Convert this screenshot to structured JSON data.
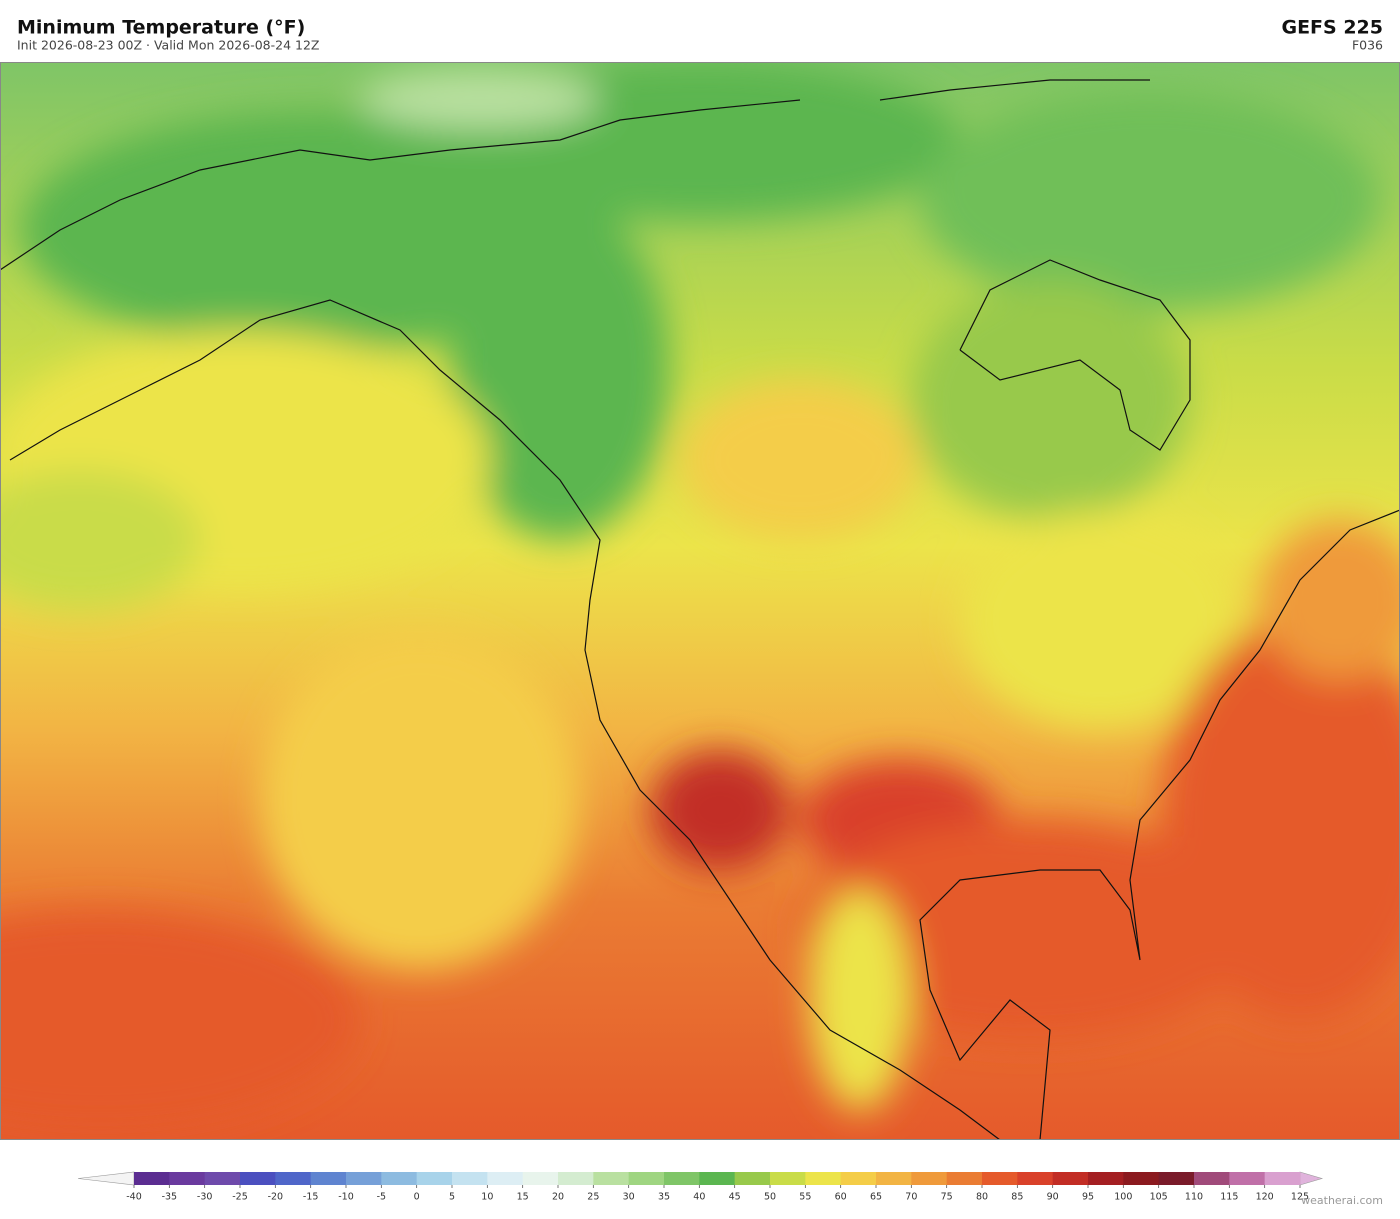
{
  "header": {
    "title": "Minimum Temperature  (°F)",
    "subtitle": "Init 2026-08-23 00Z   ·   Valid Mon 2026-08-24 12Z",
    "model": "GEFS  225",
    "forecast_hour": "F036"
  },
  "colorbar": {
    "ticks": [
      -40,
      -35,
      -30,
      -25,
      -20,
      -15,
      -10,
      -5,
      0,
      5,
      10,
      15,
      20,
      25,
      30,
      35,
      40,
      45,
      50,
      55,
      60,
      65,
      70,
      75,
      80,
      85,
      90,
      95,
      100,
      105,
      110,
      115,
      120,
      125
    ],
    "colors": [
      "#5b2d91",
      "#6a3a9e",
      "#6e4aab",
      "#4b4fbf",
      "#4f66c9",
      "#5f84d0",
      "#76a0d8",
      "#8dbbe0",
      "#a8d3ea",
      "#c4e2f0",
      "#ddeef4",
      "#e8f4ec",
      "#d4ecd0",
      "#b9e0a0",
      "#9fd581",
      "#7fc567",
      "#5bb650",
      "#98c94b",
      "#c9dc48",
      "#ece44a",
      "#f4cd48",
      "#f2b444",
      "#ef9a3b",
      "#ea7c33",
      "#e55a2b",
      "#d9412a",
      "#c22d25",
      "#a41f22",
      "#8b1a1f",
      "#7a1b2a",
      "#a04a7a",
      "#c070a8",
      "#d9a0cf"
    ],
    "under_color": "#f4f4f4",
    "over_color": "#e0b3dc"
  },
  "watermark": "weatherai.com"
}
